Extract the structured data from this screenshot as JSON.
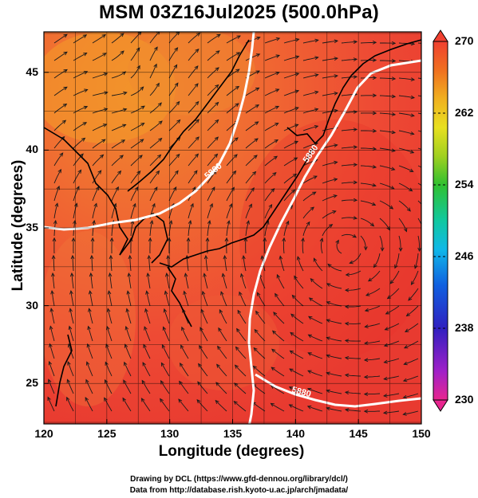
{
  "title": "MSM 03Z16Jul2025 (500.0hPa)",
  "axes": {
    "xlabel": "Longitude (degrees)",
    "ylabel": "Latitude  (degrees)",
    "xticks": [
      "120",
      "125",
      "130",
      "135",
      "140",
      "145",
      "150"
    ],
    "yticks": [
      "25",
      "30",
      "35",
      "40",
      "45"
    ]
  },
  "colorbar": {
    "ticks": [
      "270",
      "262",
      "254",
      "246",
      "238",
      "230"
    ],
    "min": 230,
    "max": 270,
    "colors": [
      "#e8258f",
      "#a020c8",
      "#3020c0",
      "#1060e0",
      "#10b8e8",
      "#10c8a0",
      "#30c030",
      "#a0d020",
      "#e8e020",
      "#f0b020",
      "#f07020",
      "#f04030"
    ]
  },
  "contour_labels": [
    "5880",
    "5880",
    "5880"
  ],
  "credits": [
    "Drawing by DCL (https://www.gfd-dennou.org/library/dcl/)",
    "Data from http://database.rish.kyoto-u.ac.jp/arch/jmadata/"
  ],
  "chart_data": {
    "type": "heatmap",
    "title": "MSM 03Z16Jul2025 (500.0hPa)",
    "xlabel": "Longitude (degrees)",
    "ylabel": "Latitude  (degrees)",
    "xlim": [
      120,
      150
    ],
    "ylim": [
      22.4,
      47.6
    ],
    "color_range": [
      230,
      270
    ],
    "contour_value": 5880,
    "grid": true,
    "overlay": "streamlines"
  }
}
